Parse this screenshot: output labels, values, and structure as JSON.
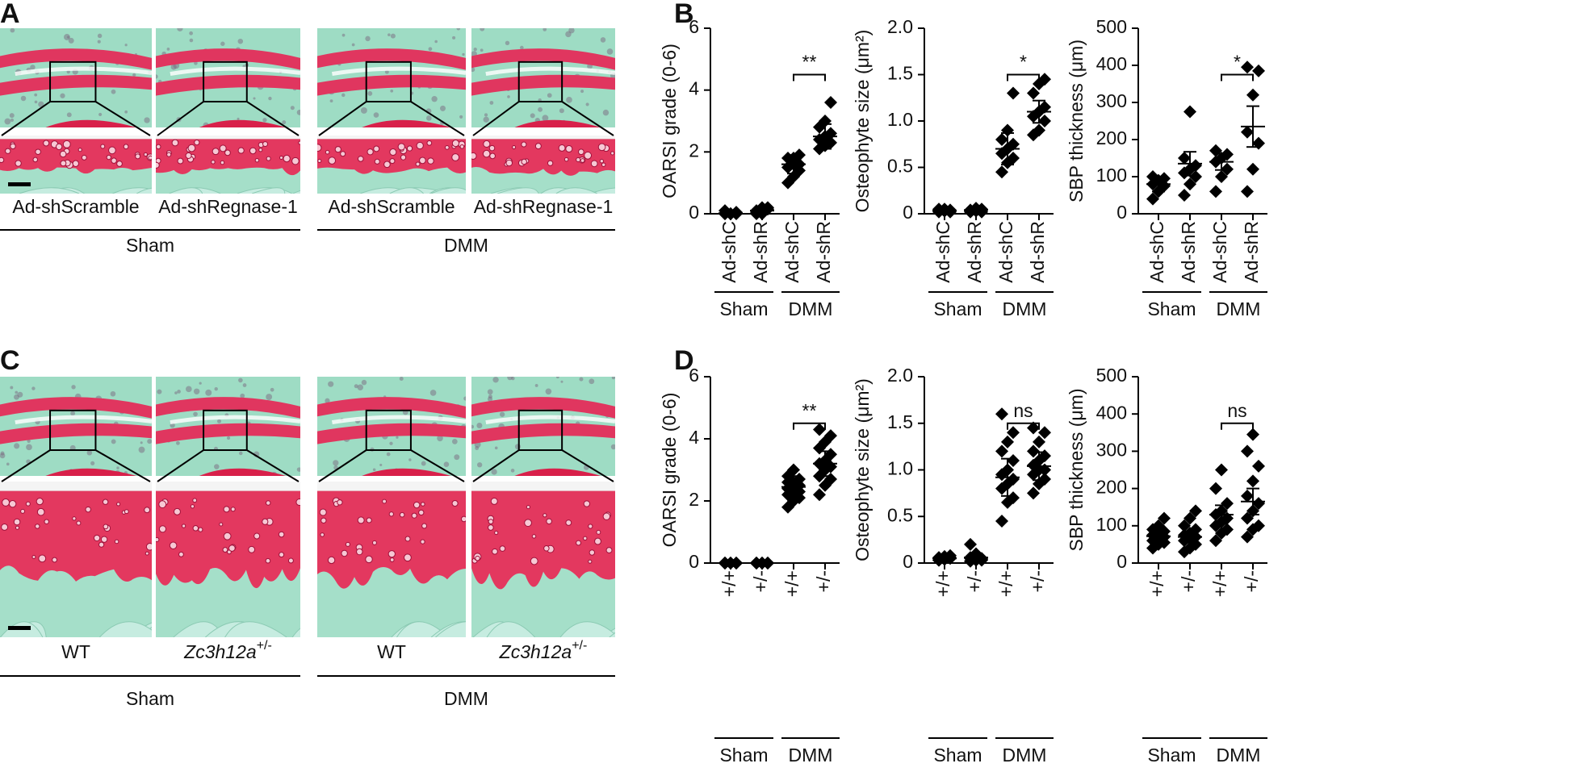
{
  "panels": {
    "letters": [
      "A",
      "B",
      "C",
      "D"
    ],
    "A": {
      "image_labels": [
        "Ad-shScramble",
        "Ad-shRegnase-1",
        "Ad-shScramble",
        "Ad-shRegnase-1"
      ],
      "groups": [
        "Sham",
        "DMM"
      ]
    },
    "C": {
      "image_labels": [
        {
          "text": "WT"
        },
        {
          "text": "Zc3h12a",
          "sup": "+/-"
        },
        {
          "text": "WT"
        },
        {
          "text": "Zc3h12a",
          "sup": "+/-"
        }
      ],
      "groups": [
        "Sham",
        "DMM"
      ]
    }
  },
  "chart_data": [
    {
      "type": "dot",
      "ylabel": "OARSI grade (0-6)",
      "ylim": [
        0,
        6
      ],
      "yticks": [
        0,
        2,
        4,
        6
      ],
      "categories": [
        "Ad-shC",
        "Ad-shR",
        "Ad-shC",
        "Ad-shR"
      ],
      "groups": [
        "Sham",
        "DMM"
      ],
      "points": [
        [
          0,
          0,
          0,
          0.1,
          0,
          0.05,
          0,
          0
        ],
        [
          0,
          0.1,
          0.2,
          0.1,
          0,
          0.15,
          0.05,
          0.2
        ],
        [
          1.0,
          1.2,
          1.4,
          1.5,
          1.6,
          1.6,
          1.8,
          1.8,
          1.9
        ],
        [
          2.1,
          2.2,
          2.3,
          2.4,
          2.5,
          2.6,
          2.8,
          3.0,
          3.6
        ]
      ],
      "means": [
        0.02,
        0.1,
        1.6,
        2.5
      ],
      "sds": [
        0.03,
        0.07,
        0.3,
        0.4
      ],
      "annotation": "**"
    },
    {
      "type": "dot",
      "ylabel": "Osteophyte size (μm²)",
      "ylim": [
        0,
        2
      ],
      "yticks": [
        0,
        0.5,
        {
          "value": 1,
          "label": "1.0"
        },
        1.5,
        {
          "value": 2,
          "label": "2.0"
        }
      ],
      "categories": [
        "Ad-shC",
        "Ad-shR",
        "Ad-shC",
        "Ad-shR"
      ],
      "groups": [
        "Sham",
        "DMM"
      ],
      "points": [
        [
          0.02,
          0.03,
          0.04,
          0.05,
          0.03,
          0.02,
          0.04,
          0.05
        ],
        [
          0.02,
          0.03,
          0.05,
          0.04,
          0.06,
          0.02,
          0.03,
          0.05
        ],
        [
          0.45,
          0.55,
          0.6,
          0.65,
          0.7,
          0.75,
          0.8,
          0.9,
          1.3
        ],
        [
          0.85,
          0.9,
          1.0,
          1.05,
          1.1,
          1.15,
          1.3,
          1.4,
          1.45
        ]
      ],
      "means": [
        0.035,
        0.04,
        0.7,
        1.1
      ],
      "sds": [
        0.01,
        0.01,
        0.17,
        0.12
      ],
      "annotation": "*"
    },
    {
      "type": "dot",
      "ylabel": "SBP thickness (μm)",
      "ylim": [
        0,
        500
      ],
      "yticks": [
        0,
        100,
        200,
        300,
        400,
        500
      ],
      "categories": [
        "Ad-shC",
        "Ad-shR",
        "Ad-shC",
        "Ad-shR"
      ],
      "groups": [
        "Sham",
        "DMM"
      ],
      "points": [
        [
          40,
          60,
          75,
          80,
          90,
          95,
          100
        ],
        [
          50,
          80,
          100,
          110,
          120,
          130,
          150,
          275
        ],
        [
          60,
          100,
          120,
          140,
          150,
          160,
          170
        ],
        [
          60,
          120,
          190,
          220,
          320,
          385,
          395
        ]
      ],
      "means": [
        80,
        135,
        140,
        235
      ],
      "sds": [
        20,
        32,
        22,
        55
      ],
      "annotation": "*"
    },
    {
      "type": "dot",
      "ylabel": "OARSI grade (0-6)",
      "ylim": [
        0,
        6
      ],
      "yticks": [
        0,
        2,
        4,
        6
      ],
      "categories": [
        "+/+",
        "+/-",
        "+/+",
        "+/-"
      ],
      "groups": [
        "Sham",
        "DMM"
      ],
      "points": [
        [
          0,
          0,
          0,
          0,
          0,
          0,
          0,
          0,
          0,
          0
        ],
        [
          0,
          0,
          0,
          0,
          0,
          0,
          0,
          0,
          0,
          0
        ],
        [
          1.8,
          2.0,
          2.1,
          2.2,
          2.2,
          2.3,
          2.4,
          2.4,
          2.5,
          2.6,
          2.6,
          2.7,
          2.8,
          3.0
        ],
        [
          2.2,
          2.5,
          2.7,
          2.8,
          3.0,
          3.1,
          3.2,
          3.3,
          3.5,
          3.7,
          3.9,
          4.1,
          4.3
        ]
      ],
      "means": [
        0,
        0,
        2.45,
        3.2
      ],
      "sds": [
        0,
        0,
        0.35,
        0.4
      ],
      "annotation": "**"
    },
    {
      "type": "dot",
      "ylabel": "Osteophyte size (μm²)",
      "ylim": [
        0,
        2
      ],
      "yticks": [
        0,
        0.5,
        {
          "value": 1,
          "label": "1.0"
        },
        1.5,
        {
          "value": 2,
          "label": "2.0"
        }
      ],
      "categories": [
        "+/+",
        "+/-",
        "+/+",
        "+/-"
      ],
      "groups": [
        "Sham",
        "DMM"
      ],
      "points": [
        [
          0.03,
          0.04,
          0.05,
          0.06,
          0.07,
          0.08,
          0.05,
          0.04,
          0.06,
          0.03
        ],
        [
          0.02,
          0.03,
          0.05,
          0.06,
          0.08,
          0.04,
          0.2,
          0.1,
          0.03,
          0.05
        ],
        [
          0.45,
          0.65,
          0.7,
          0.8,
          0.85,
          0.9,
          0.95,
          1.0,
          1.1,
          1.2,
          1.3,
          1.4,
          1.6
        ],
        [
          0.75,
          0.85,
          0.9,
          0.95,
          1.0,
          1.0,
          1.05,
          1.1,
          1.15,
          1.2,
          1.3,
          1.4,
          1.45
        ]
      ],
      "means": [
        0.05,
        0.06,
        0.92,
        1.04
      ],
      "sds": [
        0.02,
        0.03,
        0.2,
        0.15
      ],
      "annotation": "ns"
    },
    {
      "type": "dot",
      "ylabel": "SBP thickness (μm)",
      "ylim": [
        0,
        500
      ],
      "yticks": [
        0,
        100,
        200,
        300,
        400,
        500
      ],
      "categories": [
        "+/+",
        "+/-",
        "+/+",
        "+/-"
      ],
      "groups": [
        "Sham",
        "DMM"
      ],
      "points": [
        [
          40,
          50,
          55,
          60,
          65,
          70,
          75,
          80,
          85,
          90,
          100,
          120
        ],
        [
          30,
          40,
          50,
          60,
          65,
          70,
          75,
          80,
          90,
          100,
          120,
          140
        ],
        [
          60,
          80,
          90,
          100,
          110,
          120,
          130,
          140,
          160,
          200,
          250
        ],
        [
          70,
          90,
          100,
          120,
          140,
          160,
          180,
          220,
          260,
          300,
          345
        ]
      ],
      "means": [
        72,
        70,
        130,
        165
      ],
      "sds": [
        15,
        15,
        25,
        35
      ],
      "annotation": "ns"
    }
  ]
}
